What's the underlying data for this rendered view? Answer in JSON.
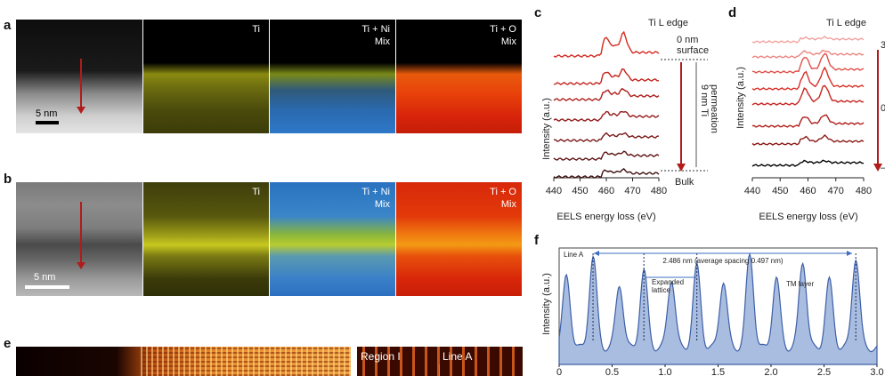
{
  "panel_labels": {
    "a": "a",
    "b": "b",
    "c": "c",
    "d": "d",
    "e": "e",
    "f": "f"
  },
  "row_a": {
    "scale_bar": "5 nm",
    "maps": [
      {
        "label": "Ti"
      },
      {
        "label": "Ti + Ni\nMix"
      },
      {
        "label": "Ti + O\nMix"
      }
    ]
  },
  "row_b": {
    "scale_bar": "5 nm",
    "maps": [
      {
        "label": "Ti"
      },
      {
        "label": "Ti + Ni\nMix"
      },
      {
        "label": "Ti + O\nMix"
      }
    ]
  },
  "row_e": {
    "region_label": "Region I",
    "line_label": "Line A"
  },
  "chart_data": [
    {
      "id": "c",
      "type": "line",
      "title": "Ti L edge",
      "xlabel": "EELS energy loss (eV)",
      "ylabel": "Intensity (a.u.)",
      "xlim": [
        440,
        480
      ],
      "xticks": [
        "440",
        "450",
        "460",
        "470",
        "480"
      ],
      "annotations": {
        "top": "0 nm\nsurface",
        "middle": "9 nm Ti\npermeation",
        "bottom": "Bulk"
      },
      "series_count": 7,
      "series_colors": [
        "#d42a20",
        "#c3231c",
        "#ad1e1a",
        "#941a18",
        "#7a1717",
        "#5e1414",
        "#3d0f0f"
      ]
    },
    {
      "id": "d",
      "type": "line",
      "title": "Ti L edge",
      "xlabel": "EELS energy loss (eV)",
      "ylabel": "Intensity (a.u.)",
      "xlim": [
        440,
        480
      ],
      "xticks": [
        "440",
        "450",
        "460",
        "470",
        "480"
      ],
      "right_labels": [
        "3",
        "0",
        "–"
      ],
      "series_count": 8,
      "series_colors": [
        "#f2a3a0",
        "#ea8580",
        "#e0504a",
        "#d83028",
        "#c82620",
        "#b01e1a",
        "#8a1a18",
        "#000000"
      ]
    },
    {
      "id": "f",
      "type": "area",
      "ylabel": "Intensity (a.u.)",
      "xlim": [
        0,
        3.0
      ],
      "xticks": [
        "0",
        "0.5",
        "1.0",
        "1.5",
        "2.0",
        "2.5",
        "3.0"
      ],
      "line_label": "Line A",
      "span_label": "2.486 nm (average spacing 0.497 nm)",
      "expanded_label": "Expanded\nlattice",
      "tm_label": "TM layer",
      "peaks_x": [
        0.07,
        0.32,
        0.57,
        0.8,
        1.06,
        1.3,
        1.55,
        1.8,
        2.05,
        2.3,
        2.55,
        2.8
      ],
      "peaks_y": [
        0.62,
        0.78,
        0.55,
        0.66,
        0.6,
        0.7,
        0.58,
        0.8,
        0.6,
        0.75,
        0.58,
        0.78
      ],
      "dashed_x": [
        0.32,
        0.8,
        1.3,
        2.8
      ]
    }
  ]
}
